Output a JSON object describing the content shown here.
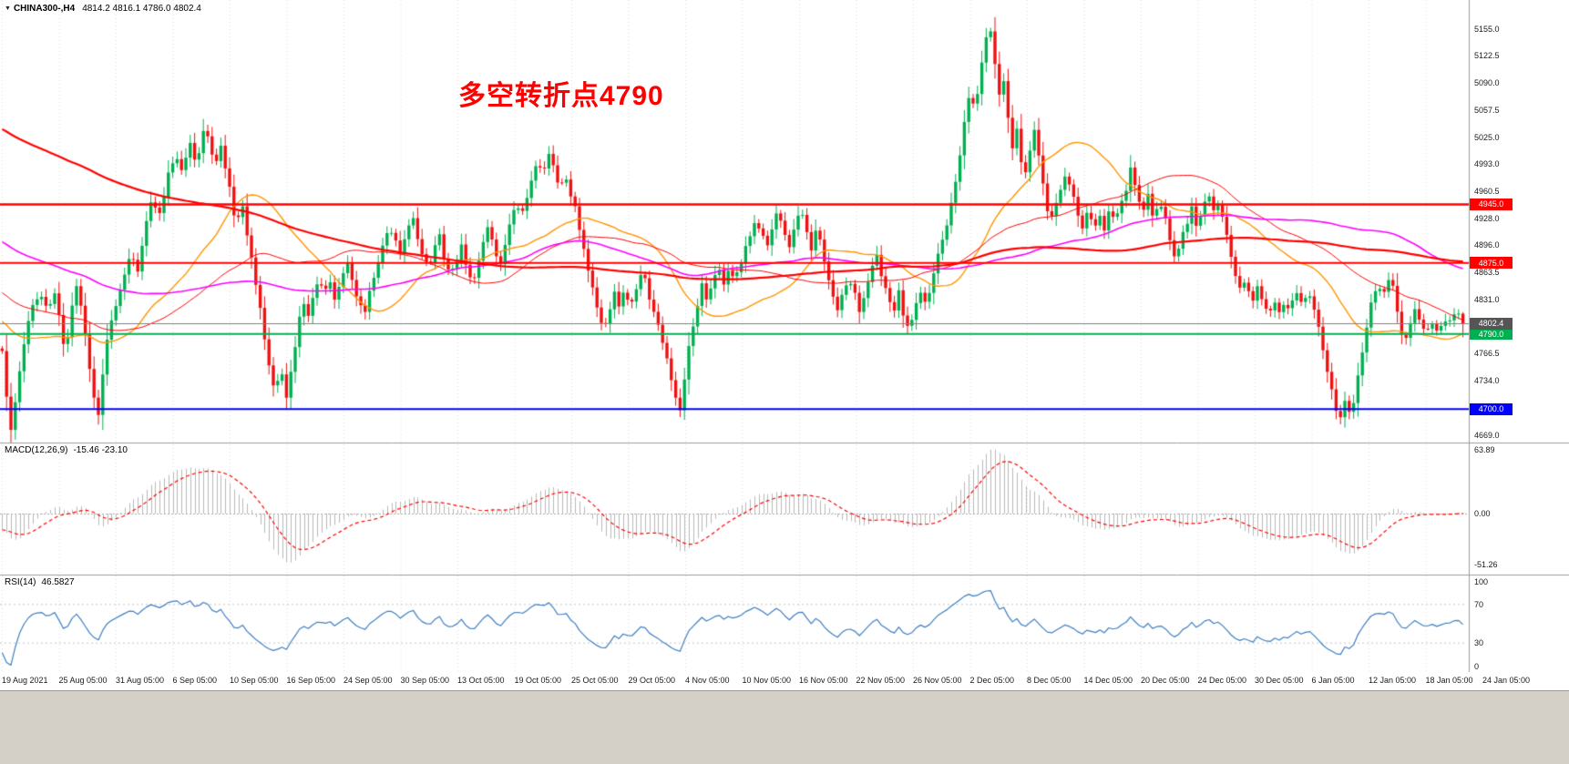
{
  "header": {
    "symbol_marker": "▼",
    "symbol": "CHINA300-,H4",
    "ohlc": "4814.2 4816.1 4786.0 4802.4"
  },
  "annotation": {
    "text": "多空转折点4790",
    "color": "#ff0000"
  },
  "chart_data": {
    "type": "candlestick",
    "symbol": "CHINA300-",
    "timeframe": "H4",
    "last_bar": {
      "open": 4814.2,
      "high": 4816.1,
      "low": 4786.0,
      "close": 4802.4
    },
    "candle_up": "#00b050",
    "candle_down": "#ee1111",
    "seed": 20,
    "price_axis": {
      "top_price": 5189.5,
      "bottom_price": 4660.0,
      "ticks": [
        {
          "label": "5155.0",
          "price": 5155.0
        },
        {
          "label": "5122.5",
          "price": 5122.5
        },
        {
          "label": "5090.0",
          "price": 5090.0
        },
        {
          "label": "5057.5",
          "price": 5057.5
        },
        {
          "label": "5025.0",
          "price": 5025.0
        },
        {
          "label": "4993.0",
          "price": 4993.0
        },
        {
          "label": "4960.5",
          "price": 4960.5
        },
        {
          "label": "4928.0",
          "price": 4928.0
        },
        {
          "label": "4896.0",
          "price": 4896.0
        },
        {
          "label": "4863.5",
          "price": 4863.5
        },
        {
          "label": "4831.0",
          "price": 4831.0
        },
        {
          "label": "4766.5",
          "price": 4766.5
        },
        {
          "label": "4734.0",
          "price": 4734.0
        },
        {
          "label": "4669.0",
          "price": 4669.0
        }
      ]
    },
    "hlines": [
      {
        "price": 4945.0,
        "label": "4945.0",
        "color": "#ff0000",
        "width": 2.5
      },
      {
        "price": 4875.0,
        "label": "4875.0",
        "color": "#ff0000",
        "width": 2
      },
      {
        "price": 4790.0,
        "label": "4790.0",
        "color": "#00b050",
        "width": 2
      },
      {
        "price": 4700.0,
        "label": "4700.0",
        "color": "#0000ff",
        "width": 2
      }
    ],
    "bid": {
      "price": 4802.4,
      "label": "4802.4",
      "badge_color": "#555555",
      "line_color": "#808080"
    },
    "time_labels": [
      "19 Aug 2021",
      "25 Aug 05:00",
      "31 Aug 05:00",
      "6 Sep 05:00",
      "10 Sep 05:00",
      "16 Sep 05:00",
      "24 Sep 05:00",
      "30 Sep 05:00",
      "13 Oct 05:00",
      "19 Oct 05:00",
      "25 Oct 05:00",
      "29 Oct 05:00",
      "4 Nov 05:00",
      "10 Nov 05:00",
      "16 Nov 05:00",
      "22 Nov 05:00",
      "26 Nov 05:00",
      "2 Dec 05:00",
      "8 Dec 05:00",
      "14 Dec 05:00",
      "20 Dec 05:00",
      "24 Dec 05:00",
      "30 Dec 05:00",
      "6 Jan 05:00",
      "12 Jan 05:00",
      "18 Jan 05:00",
      "24 Jan 05:00"
    ],
    "moving_averages": [
      {
        "name": "ma-fast-orange",
        "period": 30,
        "color": "#ff9500",
        "width": 1.4
      },
      {
        "name": "ma-mid-red",
        "period": 55,
        "color": "#ff0000",
        "width": 1
      },
      {
        "name": "ma-mid-magenta",
        "period": 100,
        "color": "#ff00ff",
        "width": 1.6
      },
      {
        "name": "ma-long-red",
        "period": 200,
        "color": "#ff0000",
        "width": 2.2
      }
    ],
    "pre_history": {
      "start_price": 5360,
      "bars": 220
    },
    "macd": {
      "label": "MACD(12,26,9)",
      "values_text": "-15.46 -23.10",
      "value_main": -15.46,
      "value_signal": -23.1,
      "fast": 12,
      "slow": 26,
      "signal": 9,
      "axis_ticks": [
        "63.89",
        "0.00",
        "-51.26"
      ],
      "axis_max": 63.89,
      "axis_min": -51.26,
      "hist_color": "#b8b8b8",
      "signal_color": "#ff0000"
    },
    "rsi": {
      "label": "RSI(14)",
      "value_text": "46.5827",
      "value": 46.5827,
      "period": 14,
      "axis_ticks": [
        "100",
        "70",
        "30",
        "0"
      ],
      "levels": [
        70,
        30
      ],
      "line_color": "#3e7fc1"
    },
    "price_path": [
      [
        0,
        4800
      ],
      [
        6,
        4730
      ],
      [
        12,
        4675
      ],
      [
        20,
        4732
      ],
      [
        28,
        4788
      ],
      [
        36,
        4820
      ],
      [
        44,
        4836
      ],
      [
        52,
        4816
      ],
      [
        60,
        4842
      ],
      [
        66,
        4800
      ],
      [
        72,
        4762
      ],
      [
        78,
        4815
      ],
      [
        84,
        4846
      ],
      [
        90,
        4820
      ],
      [
        96,
        4772
      ],
      [
        102,
        4716
      ],
      [
        108,
        4690
      ],
      [
        114,
        4752
      ],
      [
        120,
        4806
      ],
      [
        128,
        4820
      ],
      [
        136,
        4856
      ],
      [
        144,
        4890
      ],
      [
        152,
        4866
      ],
      [
        160,
        4922
      ],
      [
        168,
        4952
      ],
      [
        176,
        4930
      ],
      [
        184,
        4976
      ],
      [
        192,
        5002
      ],
      [
        200,
        4980
      ],
      [
        208,
        5016
      ],
      [
        216,
        4996
      ],
      [
        224,
        5042
      ],
      [
        230,
        5022
      ],
      [
        236,
        4990
      ],
      [
        242,
        5012
      ],
      [
        248,
        4986
      ],
      [
        254,
        4950
      ],
      [
        260,
        4920
      ],
      [
        266,
        4942
      ],
      [
        272,
        4900
      ],
      [
        278,
        4868
      ],
      [
        284,
        4834
      ],
      [
        290,
        4790
      ],
      [
        296,
        4752
      ],
      [
        302,
        4722
      ],
      [
        308,
        4746
      ],
      [
        314,
        4712
      ],
      [
        320,
        4746
      ],
      [
        326,
        4790
      ],
      [
        332,
        4830
      ],
      [
        338,
        4812
      ],
      [
        344,
        4840
      ],
      [
        350,
        4856
      ],
      [
        356,
        4836
      ],
      [
        362,
        4856
      ],
      [
        368,
        4830
      ],
      [
        374,
        4856
      ],
      [
        380,
        4880
      ],
      [
        386,
        4860
      ],
      [
        392,
        4836
      ],
      [
        398,
        4812
      ],
      [
        404,
        4832
      ],
      [
        410,
        4856
      ],
      [
        416,
        4880
      ],
      [
        422,
        4906
      ],
      [
        428,
        4920
      ],
      [
        434,
        4900
      ],
      [
        440,
        4880
      ],
      [
        446,
        4910
      ],
      [
        452,
        4930
      ],
      [
        458,
        4910
      ],
      [
        464,
        4886
      ],
      [
        470,
        4866
      ],
      [
        476,
        4886
      ],
      [
        482,
        4906
      ],
      [
        488,
        4880
      ],
      [
        494,
        4856
      ],
      [
        500,
        4876
      ],
      [
        506,
        4896
      ],
      [
        512,
        4870
      ],
      [
        518,
        4846
      ],
      [
        524,
        4870
      ],
      [
        530,
        4896
      ],
      [
        536,
        4916
      ],
      [
        542,
        4896
      ],
      [
        548,
        4870
      ],
      [
        554,
        4896
      ],
      [
        560,
        4920
      ],
      [
        566,
        4946
      ],
      [
        572,
        4926
      ],
      [
        578,
        4950
      ],
      [
        584,
        4976
      ],
      [
        590,
        5000
      ],
      [
        596,
        4980
      ],
      [
        602,
        5010
      ],
      [
        608,
        4990
      ],
      [
        614,
        4966
      ],
      [
        620,
        4986
      ],
      [
        626,
        4960
      ],
      [
        632,
        4936
      ],
      [
        638,
        4906
      ],
      [
        644,
        4876
      ],
      [
        650,
        4846
      ],
      [
        656,
        4816
      ],
      [
        662,
        4790
      ],
      [
        668,
        4816
      ],
      [
        674,
        4840
      ],
      [
        680,
        4820
      ],
      [
        686,
        4846
      ],
      [
        692,
        4820
      ],
      [
        698,
        4846
      ],
      [
        704,
        4866
      ],
      [
        710,
        4846
      ],
      [
        716,
        4820
      ],
      [
        722,
        4800
      ],
      [
        728,
        4780
      ],
      [
        734,
        4750
      ],
      [
        740,
        4720
      ],
      [
        746,
        4700
      ],
      [
        752,
        4740
      ],
      [
        758,
        4786
      ],
      [
        764,
        4820
      ],
      [
        770,
        4850
      ],
      [
        776,
        4830
      ],
      [
        782,
        4856
      ],
      [
        788,
        4870
      ],
      [
        794,
        4850
      ],
      [
        800,
        4870
      ],
      [
        806,
        4850
      ],
      [
        812,
        4870
      ],
      [
        818,
        4890
      ],
      [
        824,
        4910
      ],
      [
        830,
        4930
      ],
      [
        836,
        4910
      ],
      [
        842,
        4890
      ],
      [
        848,
        4916
      ],
      [
        854,
        4936
      ],
      [
        860,
        4916
      ],
      [
        866,
        4896
      ],
      [
        872,
        4920
      ],
      [
        878,
        4940
      ],
      [
        884,
        4916
      ],
      [
        890,
        4890
      ],
      [
        896,
        4916
      ],
      [
        902,
        4890
      ],
      [
        908,
        4866
      ],
      [
        914,
        4840
      ],
      [
        920,
        4816
      ],
      [
        926,
        4840
      ],
      [
        932,
        4860
      ],
      [
        938,
        4836
      ],
      [
        944,
        4816
      ],
      [
        950,
        4840
      ],
      [
        956,
        4866
      ],
      [
        962,
        4886
      ],
      [
        968,
        4860
      ],
      [
        974,
        4836
      ],
      [
        980,
        4816
      ],
      [
        986,
        4840
      ],
      [
        992,
        4810
      ],
      [
        998,
        4790
      ],
      [
        1004,
        4816
      ],
      [
        1010,
        4840
      ],
      [
        1016,
        4826
      ],
      [
        1022,
        4850
      ],
      [
        1028,
        4876
      ],
      [
        1034,
        4900
      ],
      [
        1040,
        4926
      ],
      [
        1046,
        4950
      ],
      [
        1052,
        4990
      ],
      [
        1058,
        5040
      ],
      [
        1064,
        5080
      ],
      [
        1070,
        5060
      ],
      [
        1076,
        5100
      ],
      [
        1082,
        5140
      ],
      [
        1088,
        5150
      ],
      [
        1092,
        5110
      ],
      [
        1096,
        5070
      ],
      [
        1100,
        5100
      ],
      [
        1104,
        5070
      ],
      [
        1108,
        5040
      ],
      [
        1112,
        5010
      ],
      [
        1116,
        5036
      ],
      [
        1120,
        5000
      ],
      [
        1124,
        4970
      ],
      [
        1128,
        4996
      ],
      [
        1132,
        5016
      ],
      [
        1136,
        5036
      ],
      [
        1140,
        5000
      ],
      [
        1144,
        4970
      ],
      [
        1148,
        4946
      ],
      [
        1152,
        4920
      ],
      [
        1158,
        4946
      ],
      [
        1164,
        4966
      ],
      [
        1170,
        4986
      ],
      [
        1176,
        4960
      ],
      [
        1182,
        4936
      ],
      [
        1188,
        4916
      ],
      [
        1194,
        4940
      ],
      [
        1200,
        4916
      ],
      [
        1206,
        4936
      ],
      [
        1212,
        4916
      ],
      [
        1218,
        4940
      ],
      [
        1224,
        4920
      ],
      [
        1230,
        4946
      ],
      [
        1236,
        4966
      ],
      [
        1242,
        4990
      ],
      [
        1248,
        4960
      ],
      [
        1254,
        4936
      ],
      [
        1260,
        4956
      ],
      [
        1266,
        4930
      ],
      [
        1272,
        4950
      ],
      [
        1278,
        4930
      ],
      [
        1284,
        4906
      ],
      [
        1290,
        4880
      ],
      [
        1296,
        4900
      ],
      [
        1302,
        4920
      ],
      [
        1308,
        4940
      ],
      [
        1314,
        4920
      ],
      [
        1320,
        4940
      ],
      [
        1326,
        4956
      ],
      [
        1332,
        4940
      ],
      [
        1338,
        4950
      ],
      [
        1344,
        4920
      ],
      [
        1350,
        4890
      ],
      [
        1356,
        4860
      ],
      [
        1362,
        4836
      ],
      [
        1368,
        4856
      ],
      [
        1374,
        4830
      ],
      [
        1380,
        4850
      ],
      [
        1386,
        4826
      ],
      [
        1392,
        4810
      ],
      [
        1398,
        4830
      ],
      [
        1404,
        4816
      ],
      [
        1410,
        4830
      ],
      [
        1416,
        4820
      ],
      [
        1422,
        4836
      ],
      [
        1428,
        4826
      ],
      [
        1434,
        4840
      ],
      [
        1440,
        4830
      ],
      [
        1446,
        4806
      ],
      [
        1452,
        4770
      ],
      [
        1458,
        4736
      ],
      [
        1464,
        4710
      ],
      [
        1470,
        4690
      ],
      [
        1476,
        4712
      ],
      [
        1482,
        4692
      ],
      [
        1488,
        4722
      ],
      [
        1494,
        4762
      ],
      [
        1500,
        4802
      ],
      [
        1506,
        4832
      ],
      [
        1512,
        4852
      ],
      [
        1518,
        4836
      ],
      [
        1524,
        4856
      ],
      [
        1530,
        4840
      ],
      [
        1536,
        4800
      ],
      [
        1542,
        4776
      ],
      [
        1548,
        4802
      ],
      [
        1554,
        4818
      ],
      [
        1560,
        4800
      ],
      [
        1566,
        4790
      ],
      [
        1572,
        4806
      ],
      [
        1578,
        4794
      ],
      [
        1584,
        4810
      ],
      [
        1590,
        4805
      ],
      [
        1596,
        4814.2
      ],
      [
        1602,
        4802.4
      ]
    ]
  }
}
